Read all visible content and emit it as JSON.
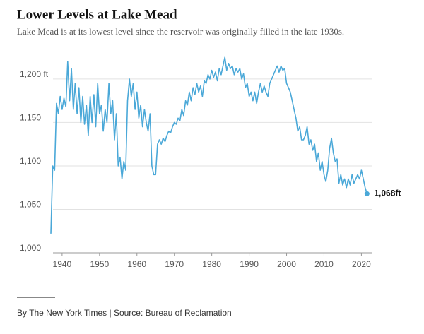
{
  "chart_data": {
    "type": "line",
    "title": "Lower Levels at Lake Mead",
    "subtitle": "Lake Mead is at its lowest level since the reservoir was originally filled in the late 1930s.",
    "source": "By The New York Times | Source: Bureau of Reclamation",
    "end_label": {
      "value": 1068,
      "label": "1,068ft"
    },
    "xlim": [
      1937,
      2022
    ],
    "ylim": [
      1000,
      1230
    ],
    "xticks": [
      1940,
      1950,
      1960,
      1970,
      1980,
      1990,
      2000,
      2010,
      2020
    ],
    "yticks": [
      {
        "value": 1000,
        "label": "1,000"
      },
      {
        "value": 1050,
        "label": "1,050"
      },
      {
        "value": 1100,
        "label": "1,100"
      },
      {
        "value": 1150,
        "label": "1,150"
      },
      {
        "value": 1200,
        "label": "1,200 ft"
      }
    ],
    "grid": true,
    "x": [
      1937,
      1937.5,
      1938,
      1938.5,
      1939,
      1939.5,
      1940,
      1940.5,
      1941,
      1941.5,
      1942,
      1942.5,
      1943,
      1943.5,
      1944,
      1944.5,
      1945,
      1945.5,
      1946,
      1946.5,
      1947,
      1947.5,
      1948,
      1948.5,
      1949,
      1949.5,
      1950,
      1950.5,
      1951,
      1951.5,
      1952,
      1952.5,
      1953,
      1953.5,
      1954,
      1954.5,
      1955,
      1955.5,
      1956,
      1956.5,
      1957,
      1957.5,
      1958,
      1958.5,
      1959,
      1959.5,
      1960,
      1960.5,
      1961,
      1961.5,
      1962,
      1962.5,
      1963,
      1963.5,
      1964,
      1964.5,
      1965,
      1965.5,
      1966,
      1966.5,
      1967,
      1967.5,
      1968,
      1968.5,
      1969,
      1969.5,
      1970,
      1970.5,
      1971,
      1971.5,
      1972,
      1972.5,
      1973,
      1973.5,
      1974,
      1974.5,
      1975,
      1975.5,
      1976,
      1976.5,
      1977,
      1977.5,
      1978,
      1978.5,
      1979,
      1979.5,
      1980,
      1980.5,
      1981,
      1981.5,
      1982,
      1982.5,
      1983,
      1983.5,
      1984,
      1984.5,
      1985,
      1985.5,
      1986,
      1986.5,
      1987,
      1987.5,
      1988,
      1988.5,
      1989,
      1989.5,
      1990,
      1990.5,
      1991,
      1991.5,
      1992,
      1992.5,
      1993,
      1993.5,
      1994,
      1994.5,
      1995,
      1995.5,
      1996,
      1996.5,
      1997,
      1997.5,
      1998,
      1998.5,
      1999,
      1999.5,
      2000,
      2000.5,
      2001,
      2001.5,
      2002,
      2002.5,
      2003,
      2003.5,
      2004,
      2004.5,
      2005,
      2005.5,
      2006,
      2006.5,
      2007,
      2007.5,
      2008,
      2008.5,
      2009,
      2009.5,
      2010,
      2010.5,
      2011,
      2011.5,
      2012,
      2012.5,
      2013,
      2013.5,
      2014,
      2014.5,
      2015,
      2015.5,
      2016,
      2016.5,
      2017,
      2017.5,
      2018,
      2018.5,
      2019,
      2019.5,
      2020,
      2020.5,
      2021,
      2021.5
    ],
    "series": [
      {
        "color": "#4aa8d8",
        "values": [
          1022,
          1100,
          1095,
          1172,
          1160,
          1180,
          1165,
          1178,
          1168,
          1220,
          1175,
          1212,
          1165,
          1195,
          1160,
          1190,
          1150,
          1180,
          1148,
          1170,
          1135,
          1180,
          1150,
          1182,
          1145,
          1195,
          1160,
          1170,
          1140,
          1165,
          1150,
          1195,
          1160,
          1175,
          1130,
          1160,
          1100,
          1110,
          1085,
          1105,
          1095,
          1175,
          1200,
          1180,
          1195,
          1165,
          1185,
          1155,
          1170,
          1145,
          1165,
          1150,
          1140,
          1160,
          1100,
          1090,
          1090,
          1125,
          1130,
          1125,
          1132,
          1128,
          1135,
          1140,
          1138,
          1145,
          1150,
          1148,
          1155,
          1152,
          1165,
          1158,
          1175,
          1170,
          1185,
          1175,
          1190,
          1182,
          1195,
          1185,
          1192,
          1180,
          1198,
          1195,
          1205,
          1200,
          1210,
          1202,
          1208,
          1198,
          1212,
          1205,
          1215,
          1225,
          1210,
          1218,
          1212,
          1215,
          1205,
          1212,
          1208,
          1212,
          1200,
          1206,
          1190,
          1195,
          1180,
          1185,
          1175,
          1185,
          1172,
          1185,
          1195,
          1185,
          1192,
          1185,
          1180,
          1195,
          1200,
          1205,
          1210,
          1215,
          1208,
          1215,
          1210,
          1212,
          1195,
          1190,
          1185,
          1175,
          1165,
          1155,
          1140,
          1145,
          1130,
          1130,
          1135,
          1145,
          1125,
          1130,
          1118,
          1125,
          1105,
          1115,
          1095,
          1105,
          1090,
          1082,
          1095,
          1120,
          1132,
          1115,
          1105,
          1108,
          1080,
          1090,
          1078,
          1085,
          1075,
          1085,
          1078,
          1090,
          1080,
          1085,
          1090,
          1085,
          1095,
          1085,
          1075,
          1068
        ]
      }
    ]
  }
}
